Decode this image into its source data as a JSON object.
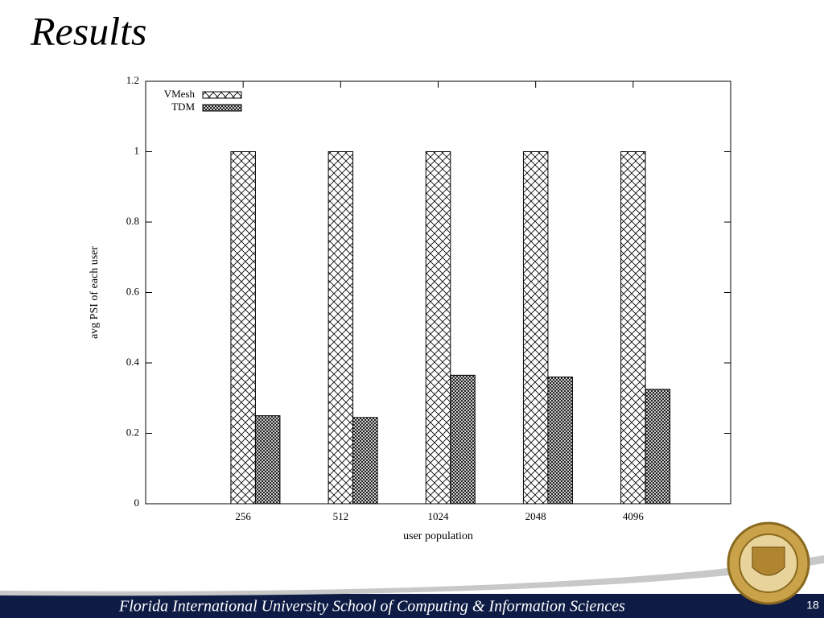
{
  "slide": {
    "title": "Results",
    "footer": "Florida International University School of Computing & Information Sciences",
    "page_number": "18"
  },
  "chart_data": {
    "type": "bar",
    "x_label": "user population",
    "y_label": "avg PSI of each user",
    "categories": [
      "256",
      "512",
      "1024",
      "2048",
      "4096"
    ],
    "series": [
      {
        "name": "VMesh",
        "color": "#000000",
        "values": [
          1,
          1,
          1,
          1,
          1
        ]
      },
      {
        "name": "TDM",
        "color": "#000000",
        "values": [
          0.25,
          0.245,
          0.365,
          0.36,
          0.325
        ]
      }
    ],
    "ylim": [
      0,
      1.2
    ],
    "yticks": [
      0,
      0.2,
      0.4,
      0.6,
      0.8,
      1,
      1.2
    ],
    "legend": "top-left"
  }
}
